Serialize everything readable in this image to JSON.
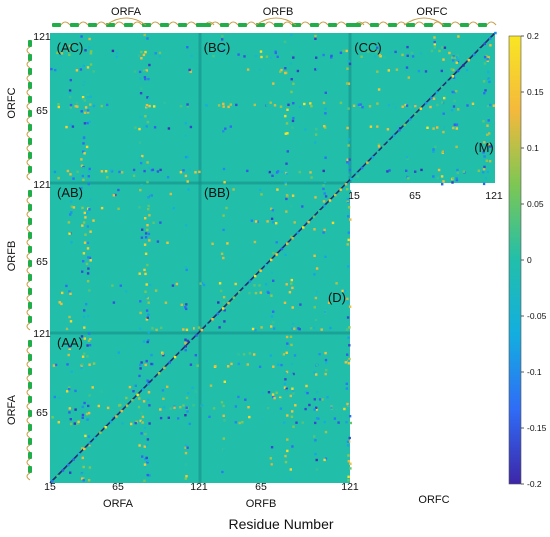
{
  "chart_data": {
    "type": "heatmap",
    "xlabel": "Residue Number",
    "colorbar": {
      "min": -0.2,
      "max": 0.2,
      "ticks": [
        0.2,
        0.15,
        0.1,
        0.05,
        0,
        -0.05,
        -0.1,
        -0.15,
        -0.2
      ],
      "tick_labels": [
        "0.2",
        "0.15",
        "0.1",
        "0.05",
        "0",
        "-0.05",
        "-0.1",
        "-0.15",
        "-0.2"
      ],
      "colors": [
        "#3d26a8",
        "#2f6cf7",
        "#13aee0",
        "#21bfaa",
        "#7cc754",
        "#f4b93c",
        "#f9e623"
      ]
    },
    "chains": [
      "ORFA",
      "ORFB",
      "ORFC"
    ],
    "residue_range": [
      15,
      121
    ],
    "x_axis_labels": [
      {
        "text": "15",
        "chain": "ORFA",
        "pos": "start"
      },
      {
        "text": "65",
        "chain": "ORFA",
        "pos": "mid"
      },
      {
        "text": "121",
        "chain": "ORFA",
        "pos": "end"
      },
      {
        "text": "65",
        "chain": "ORFB",
        "pos": "mid"
      },
      {
        "text": "121",
        "chain": "ORFB",
        "pos": "end"
      },
      {
        "text": "15",
        "chain": "M",
        "pos": "start"
      },
      {
        "text": "65",
        "chain": "M",
        "pos": "mid"
      },
      {
        "text": "121",
        "chain": "M",
        "pos": "end"
      }
    ],
    "x_chain_labels": [
      "ORFA",
      "ORFB",
      "ORFC"
    ],
    "y_axis_labels": [
      {
        "text": "121",
        "chain": "ORFC"
      },
      {
        "text": "65",
        "chain": "ORFC"
      },
      {
        "text": "121",
        "chain": "ORFB"
      },
      {
        "text": "65",
        "chain": "ORFB"
      },
      {
        "text": "121",
        "chain": "ORFA"
      },
      {
        "text": "65",
        "chain": "ORFA"
      }
    ],
    "y_chain_labels": [
      "ORFC",
      "ORFB",
      "ORFA"
    ],
    "top_chain_labels": [
      "ORFA",
      "ORFB",
      "ORFC"
    ],
    "blocks": [
      {
        "label": "(AC)",
        "row": "ORFC",
        "col": "ORFA"
      },
      {
        "label": "(BC)",
        "row": "ORFC",
        "col": "ORFB"
      },
      {
        "label": "(CC)",
        "row": "ORFC",
        "col": "ORFC"
      },
      {
        "label": "(AB)",
        "row": "ORFB",
        "col": "ORFA"
      },
      {
        "label": "(BB)",
        "row": "ORFB",
        "col": "ORFB"
      },
      {
        "label": "(AA)",
        "row": "ORFA",
        "col": "ORFA"
      },
      {
        "label": "(D)",
        "row": "diagonal",
        "col": "diagonal"
      },
      {
        "label": "(M)",
        "row": "ORFC",
        "col": "ORFC"
      }
    ],
    "background_value": 0.0
  }
}
